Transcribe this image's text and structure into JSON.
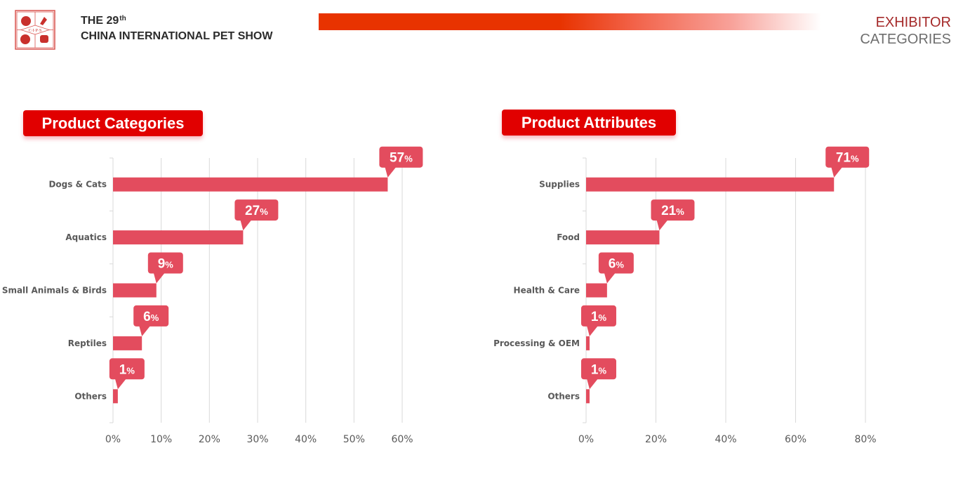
{
  "header": {
    "title_line1": "THE 29",
    "title_line1_sup": "th",
    "title_line2": "CHINA INTERNATIONAL PET SHOW",
    "logo_text": "C·I·P·S",
    "section_title_line1": "EXHIBITOR",
    "section_title_line2": "CATEGORIES"
  },
  "colors": {
    "bar": "#e34c5e",
    "badge": "#e10000",
    "header_bar": "#e83300",
    "accent_title": "#a52a2a"
  },
  "chart_data": [
    {
      "type": "bar",
      "orientation": "horizontal",
      "title": "Product Categories",
      "categories": [
        "Dogs & Cats",
        "Aquatics",
        "Small Animals & Birds",
        "Reptiles",
        "Others"
      ],
      "values": [
        57,
        27,
        9,
        6,
        1
      ],
      "data_labels": [
        "57",
        "27",
        "9",
        "6",
        "1"
      ],
      "unit": "%",
      "xlabel": "",
      "ylabel": "",
      "xlim": [
        0,
        60
      ],
      "xticks": [
        0,
        10,
        20,
        30,
        40,
        50,
        60
      ],
      "xtick_labels": [
        "0%",
        "10%",
        "20%",
        "30%",
        "40%",
        "50%",
        "60%"
      ],
      "grid": true,
      "legend": "none"
    },
    {
      "type": "bar",
      "orientation": "horizontal",
      "title": "Product Attributes",
      "categories": [
        "Supplies",
        "Food",
        "Health & Care",
        "Processing & OEM",
        "Others"
      ],
      "values": [
        71,
        21,
        6,
        1,
        1
      ],
      "data_labels": [
        "71",
        "21",
        "6",
        "1",
        "1"
      ],
      "unit": "%",
      "xlabel": "",
      "ylabel": "",
      "xlim": [
        0,
        80
      ],
      "xticks": [
        0,
        20,
        40,
        60,
        80
      ],
      "xtick_labels": [
        "0%",
        "20%",
        "40%",
        "60%",
        "80%"
      ],
      "grid": true,
      "legend": "none"
    }
  ]
}
